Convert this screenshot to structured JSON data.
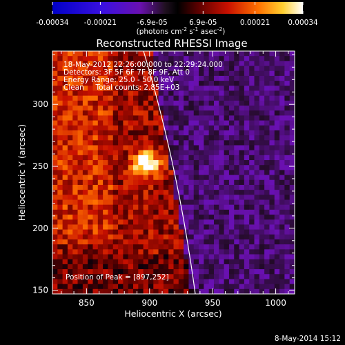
{
  "colorbar": {
    "ticks": [
      "-0.00034",
      "-0.00021",
      "-6.9e-05",
      "6.9e-05",
      "0.00021",
      "0.00034"
    ],
    "unit_parts": [
      "(photons cm",
      "-2",
      " s",
      "-1",
      " asec",
      "-2",
      ")"
    ]
  },
  "chart_data": {
    "type": "heatmap",
    "title": "Reconstructed RHESSI Image",
    "xlabel": "Heliocentric X (arcsec)",
    "ylabel": "Heliocentric Y (arcsec)",
    "xlim": [
      823,
      1015
    ],
    "ylim": [
      147,
      343
    ],
    "x_ticks": [
      "850",
      "900",
      "950",
      "1000"
    ],
    "y_ticks": [
      "150",
      "200",
      "250",
      "300"
    ],
    "colorbar_range": [
      -0.00034,
      0.00034
    ],
    "annotations": [
      "18-May-2012 22:26:00.000 to 22:29:24.000",
      "Detectors: 3F 5F 6F 7F 8F 9F, Att 0",
      "Energy Range: 25.0 - 50.0 keV",
      "Clean     Total counts: 2.85E+03"
    ],
    "peak_label": "Position of Peak = [897,252]",
    "peak": [
      897,
      252
    ]
  },
  "footer": {
    "timestamp": "8-May-2014 15:12"
  }
}
